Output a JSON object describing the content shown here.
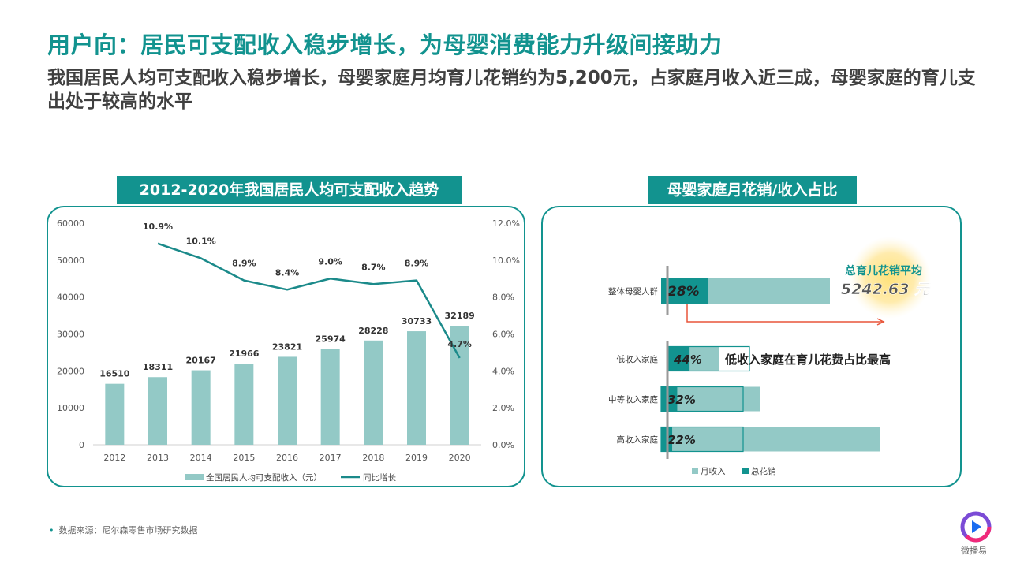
{
  "header": {
    "title": "用户向：居民可支配收入稳步增长，为母婴消费能力升级间接助力",
    "subtitle": "我国居民人均可支配收入稳步增长，母婴家庭月均育儿花销约为5,200元，占家庭月收入近三成，母婴家庭的育儿支出处于较高的水平"
  },
  "left_panel": {
    "label": "2012-2020年我国居民人均可支配收入趋势"
  },
  "right_panel": {
    "label": "母婴家庭月花销/收入占比",
    "avg_label": "总育儿花销平均",
    "avg_value": "5242.63 元",
    "annotation": "低收入家庭在育儿花费占比最高"
  },
  "source": "数据来源：尼尔森零售市场研究数据",
  "logo_text": "微播易",
  "colors": {
    "teal": "#12938f",
    "light_teal": "#93c9c6",
    "line": "#1b8a8a"
  },
  "chart_data": [
    {
      "type": "bar",
      "categories": [
        "2012",
        "2013",
        "2014",
        "2015",
        "2016",
        "2017",
        "2018",
        "2019",
        "2020"
      ],
      "series": [
        {
          "name": "全国居民人均可支配收入（元）",
          "type": "bar",
          "axis": "left",
          "values": [
            16510,
            18311,
            20167,
            21966,
            23821,
            25974,
            28228,
            30733,
            32189
          ],
          "labels": [
            "16510",
            "18311",
            "20167",
            "21966",
            "23821",
            "25974",
            "28228",
            "30733",
            "32189"
          ]
        },
        {
          "name": "同比增长",
          "type": "line",
          "axis": "right",
          "x": [
            "2013",
            "2014",
            "2015",
            "2016",
            "2017",
            "2018",
            "2019",
            "2020"
          ],
          "values": [
            10.9,
            10.1,
            8.9,
            8.4,
            9.0,
            8.7,
            8.9,
            4.7
          ],
          "labels": [
            "10.9%",
            "10.1%",
            "8.9%",
            "8.4%",
            "9.0%",
            "8.7%",
            "8.9%",
            "4.7%"
          ]
        }
      ],
      "ylim": [
        0,
        60000
      ],
      "y_ticks": [
        "0",
        "10000",
        "20000",
        "30000",
        "40000",
        "50000",
        "60000"
      ],
      "y2lim": [
        0,
        12
      ],
      "y2_ticks": [
        "0.0%",
        "2.0%",
        "4.0%",
        "6.0%",
        "8.0%",
        "10.0%",
        "12.0%"
      ],
      "legend_position": "bottom",
      "grid": false
    },
    {
      "type": "bar",
      "orientation": "horizontal",
      "categories": [
        "整体母婴人群",
        "低收入家庭",
        "中等收入家庭",
        "高收入家庭"
      ],
      "series": [
        {
          "name": "月收入",
          "values": [
            1.0,
            1.0,
            1.0,
            1.0
          ]
        },
        {
          "name": "总花销",
          "values": [
            0.28,
            0.44,
            0.32,
            0.22
          ],
          "labels": [
            "28%",
            "44%",
            "32%",
            "22%"
          ]
        }
      ],
      "legend_position": "bottom"
    }
  ]
}
